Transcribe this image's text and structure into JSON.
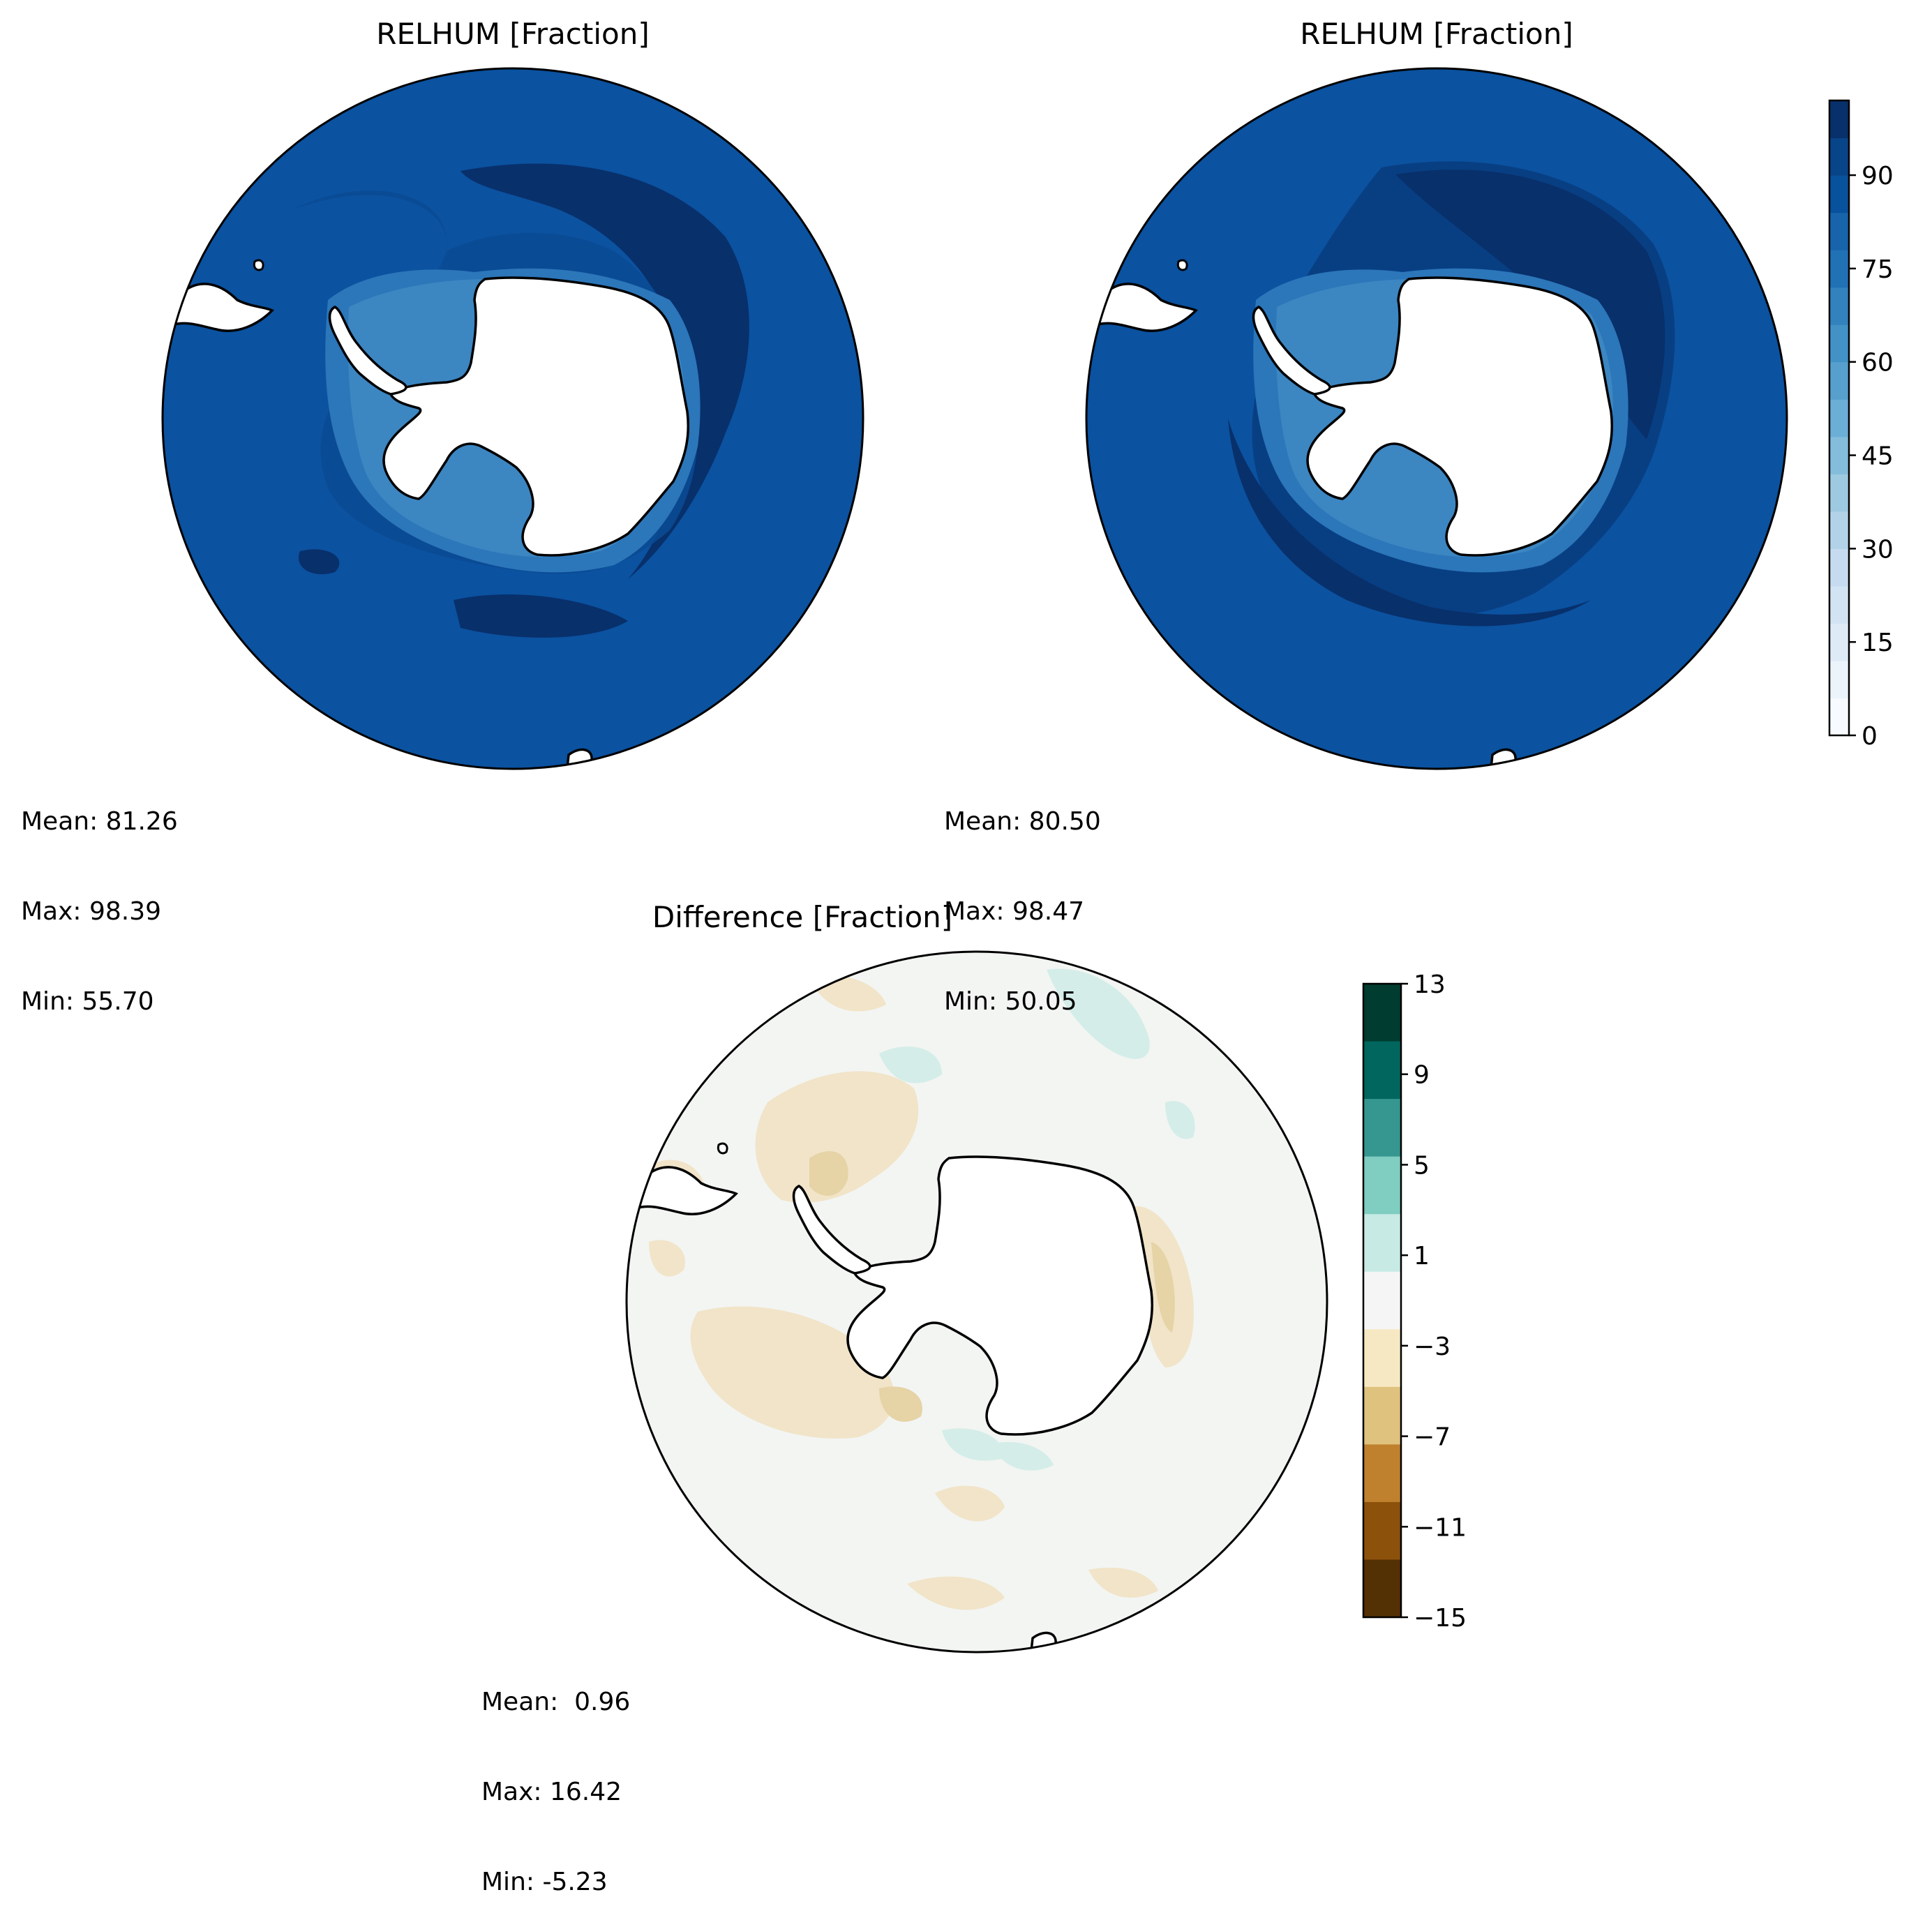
{
  "panels": [
    {
      "id": "test",
      "title": "RELHUM [Fraction]",
      "stats": {
        "mean": "Mean: 81.26",
        "max": "Max: 98.39",
        "min": "Min: 55.70"
      }
    },
    {
      "id": "reference",
      "title": "RELHUM [Fraction]",
      "stats": {
        "mean": "Mean: 80.50",
        "max": "Max: 98.47",
        "min": "Min: 50.05"
      }
    },
    {
      "id": "difference",
      "title": "Difference [Fraction]",
      "stats": {
        "mean": "Mean:  0.96",
        "max": "Max: 16.42",
        "min": "Min: -5.23"
      }
    }
  ],
  "colorbars": {
    "relhum": {
      "ticks": [
        "0",
        "15",
        "30",
        "45",
        "60",
        "75",
        "90"
      ],
      "colors": [
        "#f7fbff",
        "#ebf3fb",
        "#deebf7",
        "#d2e3f3",
        "#c6dbef",
        "#b2d2e8",
        "#9ecae1",
        "#84bcdb",
        "#6baed6",
        "#57a0ce",
        "#4292c6",
        "#3182bd",
        "#2171b5",
        "#1764ab",
        "#08519c",
        "#084488",
        "#08306b"
      ]
    },
    "difference": {
      "ticks": [
        "13",
        "9",
        "5",
        "1",
        "−3",
        "−7",
        "−11",
        "−15"
      ],
      "colors": [
        "#003c30",
        "#01665e",
        "#35978f",
        "#80cdc1",
        "#c7eae5",
        "#f5f5f5",
        "#f6e8c3",
        "#dfc27d",
        "#bf812d",
        "#8c510a",
        "#543005"
      ]
    }
  },
  "map_colors": {
    "ocean_dark": "#08306b",
    "ocean_mid": "#08468f",
    "ocean_base": "#0b52a0",
    "coast_light": "#4292c6",
    "diff_neutral": "#f3f5f3",
    "diff_brown": "#f1e4c8",
    "diff_green": "#d4ede8",
    "land": "#ffffff"
  }
}
